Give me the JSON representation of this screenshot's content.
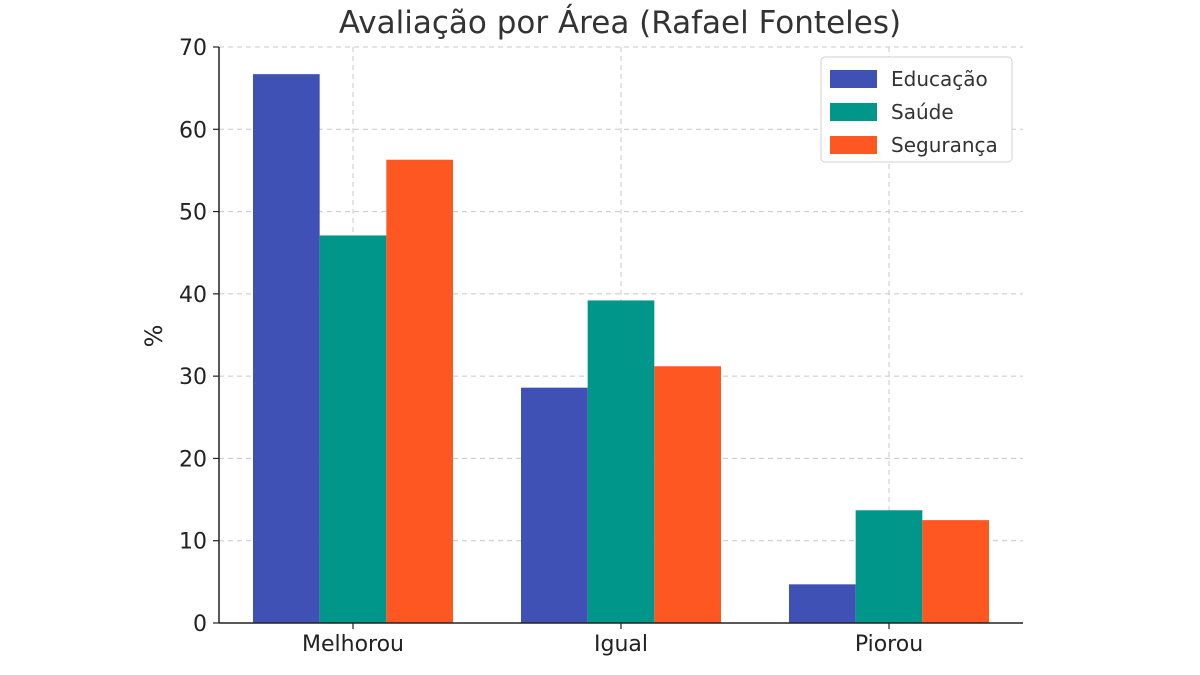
{
  "chart_data": {
    "type": "bar",
    "title": "Avaliação por Área (Rafael Fonteles)",
    "xlabel": "",
    "ylabel": "%",
    "categories": [
      "Melhorou",
      "Igual",
      "Piorou"
    ],
    "series": [
      {
        "name": "Educação",
        "color": "#4051b5",
        "values": [
          66.7,
          28.6,
          4.7
        ]
      },
      {
        "name": "Saúde",
        "color": "#00968a",
        "values": [
          47.1,
          39.2,
          13.7
        ]
      },
      {
        "name": "Segurança",
        "color": "#ff5722",
        "values": [
          56.3,
          31.2,
          12.5
        ]
      }
    ],
    "ylim": [
      0,
      70
    ],
    "yticks": [
      "0",
      "10",
      "20",
      "30",
      "40",
      "50",
      "60",
      "70"
    ],
    "grid": true,
    "legend": "top-right"
  }
}
